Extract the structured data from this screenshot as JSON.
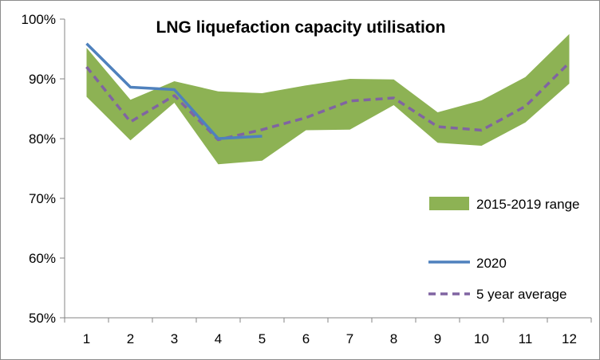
{
  "chart_data": {
    "type": "line",
    "title": "LNG liquefaction capacity utilisation",
    "xlabel": "",
    "ylabel": "",
    "categories": [
      "1",
      "2",
      "3",
      "4",
      "5",
      "6",
      "7",
      "8",
      "9",
      "10",
      "11",
      "12"
    ],
    "ylim": [
      50,
      100
    ],
    "yticks": [
      50,
      60,
      70,
      80,
      90,
      100
    ],
    "ytick_labels": [
      "50%",
      "60%",
      "70%",
      "80%",
      "90%",
      "100%"
    ],
    "grid": false,
    "legend_position": "right",
    "range": {
      "name": "2015-2019 range",
      "color": "#8db254",
      "low": [
        87.0,
        79.7,
        86.0,
        75.7,
        76.3,
        81.4,
        81.5,
        85.6,
        79.3,
        78.8,
        82.7,
        89.2
      ],
      "high": [
        95.2,
        86.5,
        89.6,
        87.9,
        87.6,
        88.9,
        90.0,
        89.9,
        84.4,
        86.4,
        90.3,
        97.5
      ]
    },
    "series": [
      {
        "name": "2020",
        "style": "solid",
        "color": "#4f81bd",
        "values": [
          95.9,
          88.6,
          88.2,
          80.0,
          80.4,
          null,
          null,
          null,
          null,
          null,
          null,
          null
        ]
      },
      {
        "name": "5 year average",
        "style": "dashed",
        "color": "#8064a2",
        "values": [
          92.0,
          82.8,
          87.2,
          79.8,
          81.5,
          83.5,
          86.3,
          86.8,
          82.0,
          81.4,
          85.4,
          92.7
        ]
      }
    ]
  }
}
